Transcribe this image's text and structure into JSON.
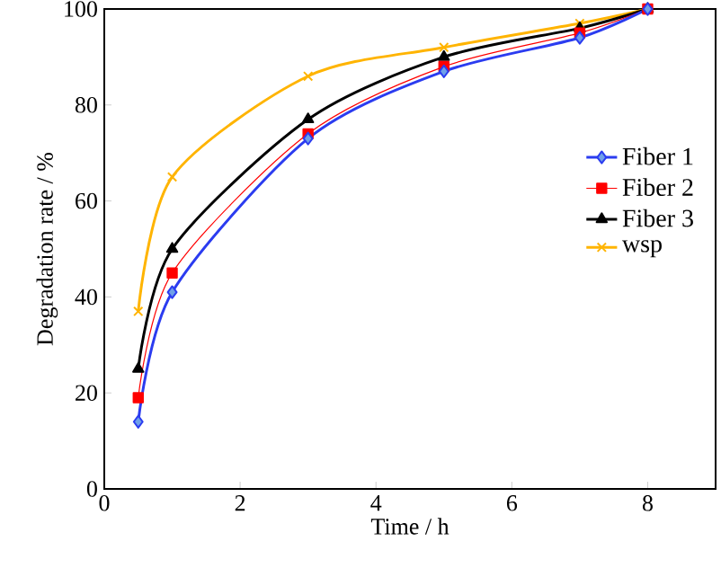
{
  "chart_data": {
    "type": "line",
    "xlabel": "Time / h",
    "ylabel": "Degradation rate / %",
    "x": [
      0.5,
      1,
      3,
      5,
      7,
      8
    ],
    "series": [
      {
        "name": "Fiber 1",
        "color": "#2b3cf0",
        "marker": "diamond",
        "values": [
          14,
          41,
          73,
          87,
          94,
          100
        ]
      },
      {
        "name": "Fiber 2",
        "color": "#ff0000",
        "marker": "square",
        "values": [
          19,
          45,
          74,
          88,
          95,
          100
        ]
      },
      {
        "name": "Fiber 3",
        "color": "#000000",
        "marker": "triangle",
        "values": [
          25,
          50,
          77,
          90,
          96,
          100
        ]
      },
      {
        "name": "wsp",
        "color": "#ffb400",
        "marker": "cross",
        "values": [
          37,
          65,
          86,
          92,
          97,
          100
        ]
      }
    ],
    "xlim": [
      0,
      9
    ],
    "ylim": [
      0,
      100
    ],
    "xticks": [
      0,
      2,
      4,
      6,
      8
    ],
    "yticks": [
      0,
      20,
      40,
      60,
      80,
      100
    ],
    "legend": "right",
    "grid": false
  }
}
